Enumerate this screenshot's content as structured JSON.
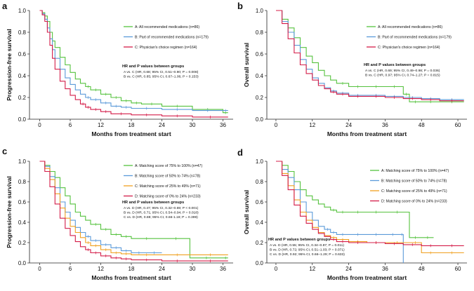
{
  "colors": {
    "A": "#55c23e",
    "B": "#5b9ad9",
    "C": "#f0a020",
    "D": "#d41c48",
    "C3": "#d41c48"
  },
  "chart_data": [
    {
      "panel": "a",
      "type": "line",
      "step": true,
      "xlabel": "Months from treatment start",
      "ylabel": "Progression-free survival",
      "xlim": [
        -2,
        38
      ],
      "ylim": [
        0,
        1
      ],
      "xticks": [
        0,
        6,
        12,
        18,
        24,
        30,
        36
      ],
      "xtick_labels": [
        "0",
        "6",
        "12",
        "18",
        "24",
        "30",
        "36"
      ],
      "yticks": [
        0,
        0.2,
        0.4,
        0.6,
        0.8,
        1.0
      ],
      "ytick_labels": [
        "0.0",
        "0.2",
        "0.4",
        "0.6",
        "0.8",
        "1.0"
      ],
      "legend": [
        {
          "key": "A",
          "label": "A: All recommended medications (n=86)"
        },
        {
          "key": "B",
          "label": "B: Part of recommended medications (n=179)"
        },
        {
          "key": "C3",
          "label": "C: Physician's choice regimen (n=164)"
        }
      ],
      "stats_title": "HR and P values between groups",
      "stats": [
        "A vs. C (HR, 0.68; 95% CI, 0.51–0.90; P = 0.008)",
        "B vs. C (HR, 0.85; 95% CI, 0.67–1.06; P = 0.153)"
      ],
      "series": [
        {
          "key": "A",
          "name": "A",
          "x": [
            0,
            0.5,
            1,
            1.5,
            2,
            2.5,
            3,
            4,
            5,
            6,
            7,
            8,
            9,
            10,
            12,
            14,
            16,
            18,
            20,
            24,
            30,
            36,
            37
          ],
          "y": [
            1,
            0.98,
            0.95,
            0.9,
            0.8,
            0.72,
            0.66,
            0.57,
            0.5,
            0.43,
            0.37,
            0.33,
            0.3,
            0.27,
            0.23,
            0.2,
            0.17,
            0.15,
            0.14,
            0.12,
            0.09,
            0.06,
            0.06
          ]
        },
        {
          "key": "B",
          "name": "B",
          "x": [
            0,
            0.5,
            1,
            1.5,
            2,
            2.5,
            3,
            4,
            5,
            6,
            7,
            8,
            9,
            10,
            12,
            14,
            16,
            18,
            24,
            30,
            36,
            37
          ],
          "y": [
            1,
            0.97,
            0.92,
            0.84,
            0.74,
            0.64,
            0.56,
            0.46,
            0.38,
            0.32,
            0.27,
            0.23,
            0.2,
            0.18,
            0.15,
            0.12,
            0.11,
            0.1,
            0.09,
            0.08,
            0.08,
            0.08
          ]
        },
        {
          "key": "C3",
          "name": "C",
          "x": [
            0,
            0.5,
            1,
            1.5,
            2,
            2.5,
            3,
            4,
            5,
            6,
            7,
            8,
            9,
            10,
            12,
            14,
            18,
            24,
            30,
            37
          ],
          "y": [
            1,
            0.96,
            0.9,
            0.8,
            0.68,
            0.56,
            0.46,
            0.35,
            0.28,
            0.22,
            0.18,
            0.14,
            0.11,
            0.09,
            0.07,
            0.05,
            0.04,
            0.03,
            0.02,
            0.02
          ]
        }
      ]
    },
    {
      "panel": "b",
      "type": "line",
      "step": true,
      "xlabel": "Months from treatment start",
      "ylabel": "Overall survival",
      "xlim": [
        -3,
        63
      ],
      "ylim": [
        0,
        1
      ],
      "xticks": [
        0,
        12,
        24,
        36,
        48,
        60
      ],
      "xtick_labels": [
        "0",
        "12",
        "24",
        "36",
        "48",
        "60"
      ],
      "yticks": [
        0,
        0.2,
        0.4,
        0.6,
        0.8,
        1.0
      ],
      "ytick_labels": [
        "0.0",
        "0.2",
        "0.4",
        "0.6",
        "0.8",
        "1.0"
      ],
      "legend": [
        {
          "key": "A",
          "label": "A: All recommended medications (n=86)"
        },
        {
          "key": "B",
          "label": "B: Part of recommended medications (n=179)"
        },
        {
          "key": "C3",
          "label": "C: Physician's choice regimen (n=164)"
        }
      ],
      "stats_title": "HR and P values between groups",
      "stats": [
        "A vs. C (HR, 0.69; 95% CI, 0.49–0.98; P = 0.036)",
        "B vs. C (HR, 0.97; 95% CI, 0.74–1.27; P = 0.815)"
      ],
      "series": [
        {
          "key": "A",
          "name": "A",
          "x": [
            0,
            2,
            4,
            6,
            8,
            10,
            12,
            14,
            16,
            18,
            20,
            24,
            30,
            36,
            42,
            44,
            48,
            54,
            62
          ],
          "y": [
            1,
            0.92,
            0.84,
            0.75,
            0.66,
            0.58,
            0.52,
            0.45,
            0.4,
            0.36,
            0.33,
            0.3,
            0.3,
            0.3,
            0.23,
            0.16,
            0.16,
            0.16,
            0.16
          ]
        },
        {
          "key": "B",
          "name": "B",
          "x": [
            0,
            2,
            4,
            6,
            8,
            10,
            12,
            14,
            16,
            18,
            20,
            24,
            30,
            36,
            42,
            48,
            54,
            62
          ],
          "y": [
            1,
            0.9,
            0.8,
            0.68,
            0.55,
            0.46,
            0.38,
            0.33,
            0.29,
            0.26,
            0.24,
            0.22,
            0.22,
            0.21,
            0.2,
            0.19,
            0.18,
            0.18
          ]
        },
        {
          "key": "C3",
          "name": "C",
          "x": [
            0,
            2,
            4,
            6,
            8,
            10,
            12,
            14,
            16,
            18,
            20,
            24,
            30,
            36,
            42,
            48,
            54,
            62
          ],
          "y": [
            1,
            0.88,
            0.74,
            0.61,
            0.5,
            0.42,
            0.36,
            0.31,
            0.28,
            0.25,
            0.23,
            0.21,
            0.21,
            0.2,
            0.19,
            0.18,
            0.17,
            0.17
          ]
        }
      ]
    },
    {
      "panel": "c",
      "type": "line",
      "step": true,
      "xlabel": "Months from treatment start",
      "ylabel": "Progression-free survival",
      "xlim": [
        -2,
        38
      ],
      "ylim": [
        0,
        1
      ],
      "xticks": [
        0,
        6,
        12,
        18,
        24,
        30,
        36
      ],
      "xtick_labels": [
        "0",
        "6",
        "12",
        "18",
        "24",
        "30",
        "36"
      ],
      "yticks": [
        0,
        0.2,
        0.4,
        0.6,
        0.8,
        1.0
      ],
      "ytick_labels": [
        "0.0",
        "0.2",
        "0.4",
        "0.6",
        "0.8",
        "1.0"
      ],
      "legend": [
        {
          "key": "A",
          "label": "A: Matching score of 75% to 100% (n=47)"
        },
        {
          "key": "B",
          "label": "B: Matching score of 50% to 74% (n=78)"
        },
        {
          "key": "C",
          "label": "C: Matching score of 25% to 49% (n=71)"
        },
        {
          "key": "D",
          "label": "D: Matching score of 0% to 24% (n=233)"
        }
      ],
      "stats_title": "HR and P values between groups",
      "stats": [
        "A vs. D (HR, 0.47; 95% CI, 0.32–0.69; P < 0.001)",
        "B vs. D (HR, 0.71; 95% CI, 0.54–0.94; P = 0.018)",
        "C vs. D (HR, 0.88; 95% CI, 0.66-1.18; P = 0.399)"
      ],
      "series": [
        {
          "key": "A",
          "name": "A",
          "x": [
            0,
            1,
            2,
            3,
            4,
            5,
            6,
            7,
            8,
            9,
            10,
            12,
            14,
            16,
            18,
            24,
            29.5,
            36,
            37
          ],
          "y": [
            1,
            0.96,
            0.9,
            0.84,
            0.74,
            0.66,
            0.58,
            0.5,
            0.46,
            0.42,
            0.38,
            0.33,
            0.28,
            0.26,
            0.24,
            0.24,
            0.05,
            0.05,
            0.05
          ]
        },
        {
          "key": "B",
          "name": "B",
          "x": [
            0,
            1,
            2,
            3,
            4,
            5,
            6,
            7,
            8,
            9,
            10,
            12,
            14,
            16,
            18,
            21,
            24
          ],
          "y": [
            1,
            0.95,
            0.85,
            0.74,
            0.6,
            0.5,
            0.42,
            0.35,
            0.3,
            0.26,
            0.22,
            0.18,
            0.15,
            0.12,
            0.1,
            0.1,
            0.1
          ]
        },
        {
          "key": "C",
          "name": "C",
          "x": [
            0,
            1,
            2,
            3,
            4,
            5,
            6,
            7,
            8,
            9,
            10,
            12,
            14,
            16,
            18,
            24,
            30,
            37
          ],
          "y": [
            1,
            0.93,
            0.82,
            0.68,
            0.54,
            0.44,
            0.36,
            0.3,
            0.25,
            0.2,
            0.17,
            0.13,
            0.1,
            0.09,
            0.08,
            0.08,
            0.08,
            0.08
          ]
        },
        {
          "key": "D",
          "name": "D",
          "x": [
            0,
            1,
            2,
            3,
            4,
            5,
            6,
            7,
            8,
            9,
            10,
            12,
            14,
            16,
            18,
            24,
            30,
            37
          ],
          "y": [
            1,
            0.9,
            0.75,
            0.58,
            0.44,
            0.34,
            0.27,
            0.21,
            0.16,
            0.13,
            0.1,
            0.07,
            0.05,
            0.04,
            0.03,
            0.02,
            0.02,
            0.02
          ]
        }
      ]
    },
    {
      "panel": "d",
      "type": "line",
      "step": true,
      "xlabel": "Months from treatment start",
      "ylabel": "Overall survival",
      "xlim": [
        -3,
        63
      ],
      "ylim": [
        0,
        1
      ],
      "xticks": [
        0,
        12,
        24,
        36,
        48,
        60
      ],
      "xtick_labels": [
        "0",
        "12",
        "24",
        "36",
        "48",
        "60"
      ],
      "yticks": [
        0,
        0.2,
        0.4,
        0.6,
        0.8,
        1.0
      ],
      "ytick_labels": [
        "0.0",
        "0.2",
        "0.4",
        "0.6",
        "0.8",
        "1.0"
      ],
      "legend": [
        {
          "key": "A",
          "label": "A: Matching score of 75% to 100% (n=47)"
        },
        {
          "key": "B",
          "label": "B: Matching score of 50% to 74% (n=78)"
        },
        {
          "key": "C",
          "label": "C: Matching score of 25% to 49% (n=71)"
        },
        {
          "key": "D",
          "label": "D: Matching score of 0% to 24% (n=233)"
        }
      ],
      "stats_title": "HR and P values between groups",
      "stats": [
        "A vs. D (HR, 0.55; 95% CI, 0.34–0.87; P = 0.011)",
        "B vs. D (HR, 0.72; 95% CI, 0.51–1.03; P = 0.071)",
        "C vs. D (HR, 0.92; 95% CI, 0.66–1.29; P = 0.633)"
      ],
      "series": [
        {
          "key": "A",
          "name": "A",
          "x": [
            0,
            2,
            4,
            6,
            8,
            10,
            12,
            14,
            16,
            18,
            20,
            24,
            30,
            36,
            44,
            48,
            52
          ],
          "y": [
            1,
            0.96,
            0.9,
            0.8,
            0.72,
            0.66,
            0.62,
            0.58,
            0.55,
            0.52,
            0.5,
            0.5,
            0.5,
            0.5,
            0.25,
            0.25,
            0.25
          ]
        },
        {
          "key": "B",
          "name": "B",
          "x": [
            0,
            2,
            4,
            6,
            8,
            10,
            12,
            14,
            16,
            18,
            20,
            24,
            30,
            36,
            41,
            42
          ],
          "y": [
            1,
            0.92,
            0.84,
            0.72,
            0.6,
            0.5,
            0.42,
            0.36,
            0.33,
            0.3,
            0.28,
            0.28,
            0.28,
            0.28,
            0.28,
            0
          ]
        },
        {
          "key": "C",
          "name": "C",
          "x": [
            0,
            2,
            4,
            6,
            8,
            10,
            12,
            14,
            16,
            18,
            20,
            24,
            30,
            36,
            44,
            48,
            54,
            62
          ],
          "y": [
            1,
            0.88,
            0.76,
            0.62,
            0.5,
            0.42,
            0.35,
            0.3,
            0.27,
            0.25,
            0.23,
            0.21,
            0.2,
            0.2,
            0.2,
            0.1,
            0.1,
            0.1
          ]
        },
        {
          "key": "D",
          "name": "D",
          "x": [
            0,
            2,
            4,
            6,
            8,
            10,
            12,
            14,
            16,
            18,
            20,
            24,
            30,
            36,
            42,
            48,
            54,
            62
          ],
          "y": [
            1,
            0.86,
            0.72,
            0.57,
            0.46,
            0.39,
            0.33,
            0.29,
            0.26,
            0.23,
            0.21,
            0.2,
            0.2,
            0.19,
            0.18,
            0.17,
            0.17,
            0.17
          ]
        }
      ]
    }
  ]
}
